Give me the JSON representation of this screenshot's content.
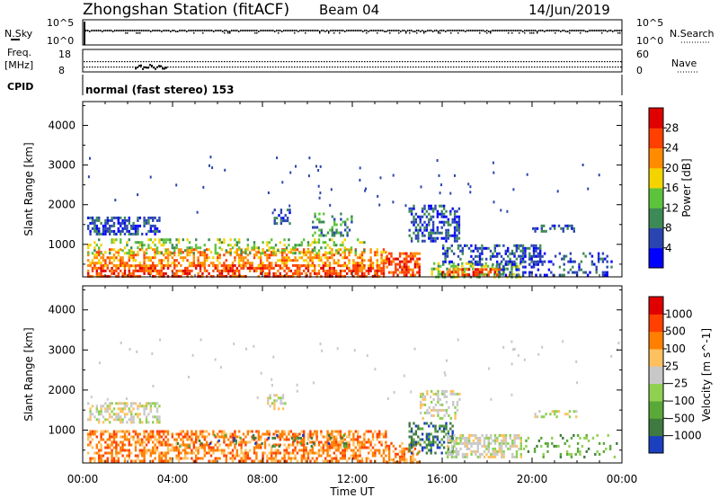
{
  "header": {
    "station": "Zhongshan Station (fitACF)",
    "beam": "Beam 04",
    "date": "14/Jun/2019"
  },
  "strip_labels": {
    "nsky": "N.Sky",
    "nsearch": "N.Search",
    "freq_top": "Freq.",
    "freq_unit": "[MHz]",
    "nave": "Nave",
    "cpid": "CPID",
    "cpid_text": "normal (fast stereo) 153",
    "left_ticks_top": [
      "10^5",
      "10^0"
    ],
    "right_ticks_top": [
      "10^5",
      "10^0"
    ],
    "left_ticks_freq": [
      "18",
      "8"
    ],
    "right_ticks_nave": [
      "60",
      "0"
    ]
  },
  "chart_data": [
    {
      "type": "heatmap",
      "name": "power",
      "ylabel": "Slant Range [km]",
      "xlabel": "Time UT",
      "x_ticks": [
        "00:00",
        "04:00",
        "08:00",
        "12:00",
        "16:00",
        "20:00",
        "00:00"
      ],
      "y_ticks": [
        1000,
        2000,
        3000,
        4000
      ],
      "ylim": [
        180,
        4600
      ],
      "xlim_hours": [
        0,
        24
      ],
      "colorbar": {
        "label": "Power [dB]",
        "ticks": [
          "4",
          "8",
          "12",
          "16",
          "20",
          "24",
          "28"
        ],
        "colors": [
          "#0000ff",
          "#2a45b0",
          "#3d8a56",
          "#5cc43c",
          "#f4d400",
          "#ff8c00",
          "#ff4000",
          "#e00000"
        ]
      },
      "blobs": [
        {
          "t0": 0.2,
          "t1": 3.4,
          "r0": 1250,
          "r1": 1700,
          "c": 1,
          "d": 0.55
        },
        {
          "t0": 0.2,
          "t1": 13.5,
          "r0": 200,
          "r1": 500,
          "c": 6,
          "d": 0.6
        },
        {
          "t0": 0.2,
          "t1": 13.5,
          "r0": 450,
          "r1": 900,
          "c": 5,
          "d": 0.5
        },
        {
          "t0": 0.2,
          "t1": 12.5,
          "r0": 800,
          "r1": 1150,
          "c": 3,
          "d": 0.25
        },
        {
          "t0": 8.5,
          "t1": 9.2,
          "r0": 1500,
          "r1": 1900,
          "c": 1,
          "d": 0.5
        },
        {
          "t0": 10.2,
          "t1": 12.0,
          "r0": 1200,
          "r1": 1800,
          "c": 2,
          "d": 0.3
        },
        {
          "t0": 14.5,
          "t1": 16.8,
          "r0": 1100,
          "r1": 2000,
          "c": 1,
          "d": 0.5
        },
        {
          "t0": 13.5,
          "t1": 15.0,
          "r0": 200,
          "r1": 800,
          "c": 6,
          "d": 0.55
        },
        {
          "t0": 15.5,
          "t1": 19.5,
          "r0": 200,
          "r1": 550,
          "c": 3,
          "d": 0.5
        },
        {
          "t0": 16.0,
          "t1": 18.5,
          "r0": 200,
          "r1": 400,
          "c": 6,
          "d": 0.6
        },
        {
          "t0": 16.0,
          "t1": 20.5,
          "r0": 500,
          "r1": 1000,
          "c": 1,
          "d": 0.35
        },
        {
          "t0": 18.5,
          "t1": 23.5,
          "r0": 250,
          "r1": 800,
          "c": 1,
          "d": 0.25
        },
        {
          "t0": 20.0,
          "t1": 22.0,
          "r0": 1350,
          "r1": 1500,
          "c": 1,
          "d": 0.35
        }
      ]
    },
    {
      "type": "heatmap",
      "name": "velocity",
      "ylabel": "Slant Range [km]",
      "xlabel": "Time UT",
      "x_ticks": [
        "00:00",
        "04:00",
        "08:00",
        "12:00",
        "16:00",
        "20:00",
        "00:00"
      ],
      "y_ticks": [
        1000,
        2000,
        3000,
        4000
      ],
      "ylim": [
        180,
        4600
      ],
      "xlim_hours": [
        0,
        24
      ],
      "colorbar": {
        "label": "Velocity [m s^-1]",
        "ticks": [
          "1000",
          "500",
          "100",
          "25",
          "−25",
          "−100",
          "−500",
          "−1000"
        ],
        "colors": [
          "#1a3fbf",
          "#3f7a40",
          "#5aa837",
          "#8fd050",
          "#c8c8c8",
          "#ffc060",
          "#ff7f00",
          "#ff4000",
          "#e00000"
        ]
      },
      "blobs": [
        {
          "t0": 0.2,
          "t1": 3.4,
          "r0": 1200,
          "r1": 1700,
          "c": 4,
          "d": 0.55
        },
        {
          "t0": 0.2,
          "t1": 13.5,
          "r0": 200,
          "r1": 1000,
          "c": 6,
          "d": 0.55
        },
        {
          "t0": 4.0,
          "t1": 12.0,
          "r0": 600,
          "r1": 900,
          "c": 1,
          "d": 0.12
        },
        {
          "t0": 8.2,
          "t1": 9.0,
          "r0": 1500,
          "r1": 1900,
          "c": 4,
          "d": 0.45
        },
        {
          "t0": 13.5,
          "t1": 15.0,
          "r0": 200,
          "r1": 700,
          "c": 6,
          "d": 0.5
        },
        {
          "t0": 14.5,
          "t1": 16.5,
          "r0": 400,
          "r1": 1200,
          "c": 1,
          "d": 0.45
        },
        {
          "t0": 15.0,
          "t1": 16.8,
          "r0": 1300,
          "r1": 2000,
          "c": 4,
          "d": 0.4
        },
        {
          "t0": 16.2,
          "t1": 19.5,
          "r0": 300,
          "r1": 900,
          "c": 4,
          "d": 0.55
        },
        {
          "t0": 19.5,
          "t1": 23.8,
          "r0": 300,
          "r1": 900,
          "c": 2,
          "d": 0.18
        },
        {
          "t0": 20.0,
          "t1": 22.0,
          "r0": 1350,
          "r1": 1500,
          "c": 4,
          "d": 0.35
        }
      ]
    }
  ]
}
